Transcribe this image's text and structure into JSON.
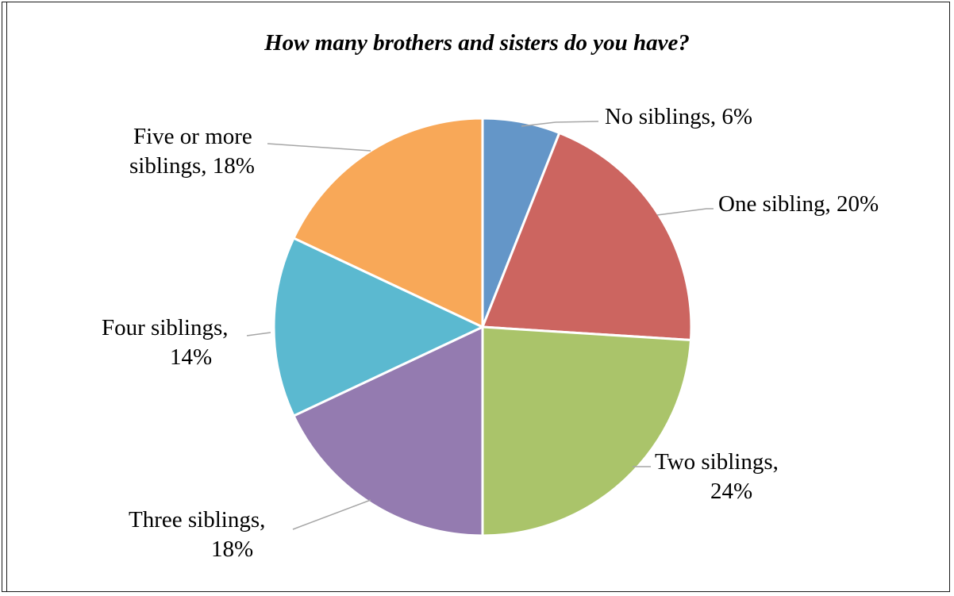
{
  "chart_data": {
    "type": "pie",
    "title": "How many brothers and sisters do you have?",
    "categories": [
      "No siblings",
      "One sibling",
      "Two siblings",
      "Three siblings",
      "Four siblings",
      "Five or more siblings"
    ],
    "values": [
      6,
      20,
      24,
      18,
      14,
      18
    ],
    "unit": "%",
    "data_labels": [
      [
        "No siblings, 6%"
      ],
      [
        "One sibling, 20%"
      ],
      [
        "Two siblings,",
        "24%"
      ],
      [
        "Three siblings,",
        "18%"
      ],
      [
        "Four siblings,",
        "14%"
      ],
      [
        "Five or more",
        "siblings, 18%"
      ]
    ],
    "colors": [
      "#6496C8",
      "#CC6560",
      "#AAC46A",
      "#947BB0",
      "#5BB9D0",
      "#F8A858"
    ],
    "start_angle": "12 o'clock",
    "direction": "clockwise",
    "legend": "none"
  }
}
